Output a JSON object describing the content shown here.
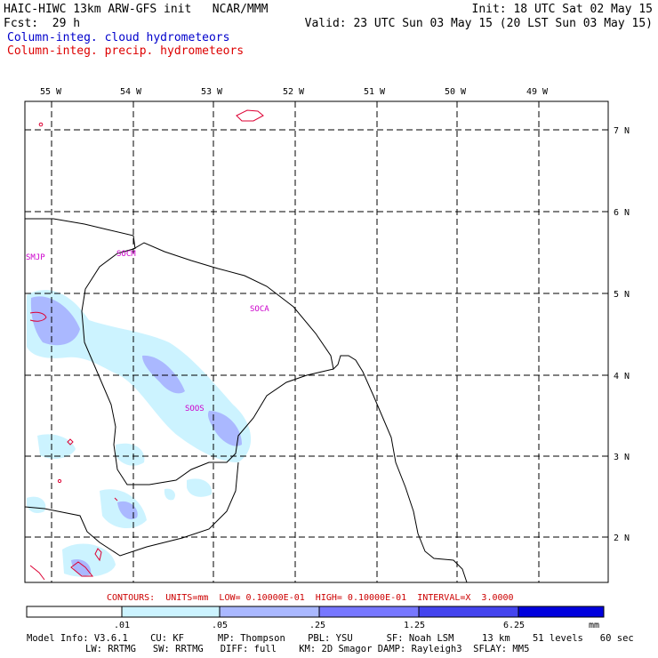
{
  "header": {
    "title": "HAIC-HIWC 13km ARW-GFS init   NCAR/MMM",
    "forecast": "Fcst:  29 h",
    "init": "Init: 18 UTC Sat 02 May 15",
    "valid": "Valid: 23 UTC Sun 03 May 15 (20 LST Sun 03 May 15)",
    "field_cloud": "Column-integ. cloud hydrometeors",
    "field_precip": "Column-integ. precip. hydrometeors"
  },
  "colors": {
    "cloud_text": "#0000cc",
    "precip_text": "#dd0000",
    "station_label": "#cc00cc",
    "contour": "#dd0033",
    "scale": [
      "#ffffff",
      "#ccf3ff",
      "#aab8ff",
      "#7777ff",
      "#4444ee",
      "#0000dd"
    ]
  },
  "map": {
    "lon_labels": [
      "55 W",
      "54 W",
      "53 W",
      "52 W",
      "51 W",
      "50 W",
      "49 W"
    ],
    "lat_labels": [
      "7 N",
      "6 N",
      "5 N",
      "4 N",
      "3 N",
      "2 N"
    ],
    "stations": [
      "SMJP",
      "SOCM",
      "SOCA",
      "SOOS"
    ]
  },
  "legend": {
    "contours": "CONTOURS:  UNITS=mm  LOW= 0.10000E-01  HIGH= 0.10000E-01  INTERVAL=X  3.0000",
    "ticks": [
      ".01",
      ".05",
      ".25",
      "1.25",
      "6.25"
    ],
    "units": "mm"
  },
  "model_info": {
    "line1": "Model Info: V3.6.1    CU: KF      MP: Thompson    PBL: YSU      SF: Noah LSM     13 km    51 levels   60 sec",
    "line2": "LW: RRTMG   SW: RRTMG   DIFF: full    KM: 2D Smagor DAMP: Rayleigh3  SFLAY: MM5"
  }
}
